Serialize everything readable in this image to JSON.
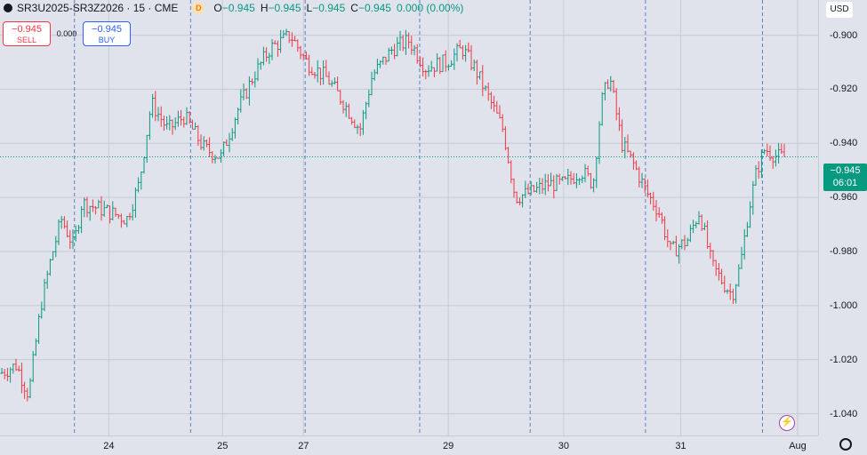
{
  "legend": {
    "symbol": "SR3U2025-SR3Z2026 · 15 · CME",
    "badge": "D",
    "o_label": "O",
    "o_value": "−0.945",
    "h_label": "H",
    "h_value": "−0.945",
    "l_label": "L",
    "l_value": "−0.945",
    "c_label": "C",
    "c_value": "−0.945",
    "change": "0.000 (0.00%)"
  },
  "trade": {
    "sell_price": "−0.945",
    "sell_label": "SELL",
    "spread": "0.000",
    "buy_price": "−0.945",
    "buy_label": "BUY"
  },
  "currency": "USD",
  "current": {
    "price": "−0.945",
    "countdown": "06:01",
    "value": -0.945
  },
  "colors": {
    "up": "#089981",
    "down": "#f23645",
    "grid": "#c7cad3",
    "session": "#5b7ec9",
    "background": "#e0e3eb"
  },
  "icons": {
    "settings": "gear-icon",
    "alert": "lightning-icon"
  },
  "chart_data": {
    "type": "ohlc",
    "ylim": [
      -1.048,
      -0.887
    ],
    "price_ticks": [
      "-0.900",
      "-0.920",
      "-0.940",
      "-0.960",
      "-0.980",
      "-1.000",
      "-1.020",
      "-1.040"
    ],
    "price_tick_values": [
      -0.9,
      -0.92,
      -0.94,
      -0.96,
      -0.98,
      -1.0,
      -1.02,
      -1.04
    ],
    "time_ticks": [
      "24",
      "25",
      "27",
      "29",
      "30",
      "31",
      "Aug"
    ],
    "time_tick_slots": [
      0.133,
      0.272,
      0.371,
      0.548,
      0.689,
      0.832,
      0.975
    ],
    "session_breaks": [
      0.091,
      0.233,
      0.373,
      0.513,
      0.648,
      0.789,
      0.932
    ],
    "grid": true,
    "path_note_free": true,
    "anchors": [
      [
        0.0,
        -1.025
      ],
      [
        0.02,
        -1.022
      ],
      [
        0.035,
        -1.033
      ],
      [
        0.05,
        -1.0
      ],
      [
        0.062,
        -0.983
      ],
      [
        0.075,
        -0.968
      ],
      [
        0.09,
        -0.978
      ],
      [
        0.1,
        -0.962
      ],
      [
        0.13,
        -0.965
      ],
      [
        0.155,
        -0.968
      ],
      [
        0.17,
        -0.955
      ],
      [
        0.185,
        -0.925
      ],
      [
        0.205,
        -0.935
      ],
      [
        0.225,
        -0.93
      ],
      [
        0.25,
        -0.942
      ],
      [
        0.27,
        -0.945
      ],
      [
        0.29,
        -0.928
      ],
      [
        0.31,
        -0.915
      ],
      [
        0.33,
        -0.905
      ],
      [
        0.355,
        -0.9
      ],
      [
        0.375,
        -0.91
      ],
      [
        0.4,
        -0.916
      ],
      [
        0.42,
        -0.925
      ],
      [
        0.44,
        -0.935
      ],
      [
        0.455,
        -0.915
      ],
      [
        0.48,
        -0.905
      ],
      [
        0.5,
        -0.902
      ],
      [
        0.52,
        -0.912
      ],
      [
        0.545,
        -0.91
      ],
      [
        0.565,
        -0.905
      ],
      [
        0.58,
        -0.912
      ],
      [
        0.6,
        -0.925
      ],
      [
        0.615,
        -0.935
      ],
      [
        0.63,
        -0.96
      ],
      [
        0.65,
        -0.958
      ],
      [
        0.67,
        -0.955
      ],
      [
        0.69,
        -0.955
      ],
      [
        0.71,
        -0.95
      ],
      [
        0.725,
        -0.955
      ],
      [
        0.735,
        -0.925
      ],
      [
        0.745,
        -0.915
      ],
      [
        0.76,
        -0.94
      ],
      [
        0.775,
        -0.948
      ],
      [
        0.79,
        -0.958
      ],
      [
        0.805,
        -0.965
      ],
      [
        0.82,
        -0.98
      ],
      [
        0.84,
        -0.976
      ],
      [
        0.855,
        -0.965
      ],
      [
        0.87,
        -0.985
      ],
      [
        0.885,
        -0.992
      ],
      [
        0.895,
        -0.996
      ],
      [
        0.905,
        -0.985
      ],
      [
        0.915,
        -0.965
      ],
      [
        0.925,
        -0.95
      ],
      [
        0.935,
        -0.942
      ],
      [
        0.95,
        -0.945
      ],
      [
        0.962,
        -0.945
      ]
    ]
  }
}
